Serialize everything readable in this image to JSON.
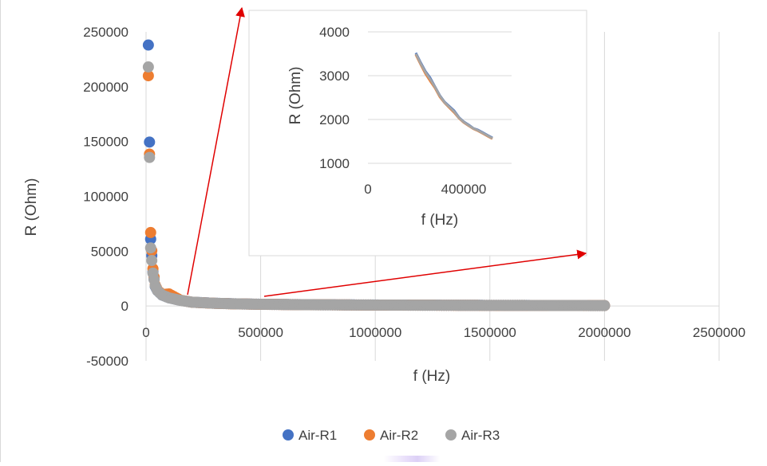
{
  "chart_data": [
    {
      "type": "scatter",
      "role": "main",
      "xlabel": "f (Hz)",
      "ylabel": "R (Ohm)",
      "xlim": [
        0,
        2500000
      ],
      "ylim": [
        -50000,
        250000
      ],
      "x_ticks": [
        "0",
        "500000",
        "1000000",
        "1500000",
        "2000000",
        "2500000"
      ],
      "y_ticks": [
        "250000",
        "200000",
        "150000",
        "100000",
        "50000",
        "0",
        "-50000"
      ],
      "grid": "vertical",
      "legend_position": "bottom",
      "series": [
        {
          "name": "Air-R1",
          "color": "#4472c4",
          "points": [
            [
              10000,
              238000
            ],
            [
              20000,
              61000
            ],
            [
              30000,
              31000
            ],
            [
              40000,
              18000
            ],
            [
              50000,
              14000
            ],
            [
              70000,
              10000
            ],
            [
              100000,
              7500
            ],
            [
              150000,
              5200
            ],
            [
              200000,
              3500
            ],
            [
              300000,
              2500
            ],
            [
              400000,
              1950
            ],
            [
              500000,
              1600
            ],
            [
              700000,
              1200
            ],
            [
              1000000,
              900
            ],
            [
              1300000,
              700
            ],
            [
              1600000,
              560
            ],
            [
              1800000,
              480
            ],
            [
              2000000,
              420
            ]
          ]
        },
        {
          "name": "Air-R2",
          "color": "#ed7d31",
          "points": [
            [
              10000,
              210000
            ],
            [
              20000,
              67000
            ],
            [
              30000,
              34000
            ],
            [
              40000,
              19000
            ],
            [
              50000,
              14500
            ],
            [
              70000,
              10500
            ],
            [
              100000,
              11000
            ],
            [
              150000,
              5300
            ],
            [
              200000,
              3450
            ],
            [
              300000,
              2450
            ],
            [
              400000,
              1900
            ],
            [
              500000,
              1580
            ],
            [
              700000,
              1180
            ],
            [
              1000000,
              880
            ],
            [
              1300000,
              690
            ],
            [
              1600000,
              550
            ],
            [
              1800000,
              470
            ],
            [
              2000000,
              410
            ]
          ]
        },
        {
          "name": "Air-R3",
          "color": "#a5a5a5",
          "points": [
            [
              10000,
              218000
            ],
            [
              20000,
              53000
            ],
            [
              30000,
              30000
            ],
            [
              40000,
              18500
            ],
            [
              50000,
              14000
            ],
            [
              70000,
              10000
            ],
            [
              100000,
              7400
            ],
            [
              150000,
              5100
            ],
            [
              200000,
              3480
            ],
            [
              300000,
              2480
            ],
            [
              400000,
              1930
            ],
            [
              500000,
              1590
            ],
            [
              700000,
              1190
            ],
            [
              1000000,
              890
            ],
            [
              1300000,
              700
            ],
            [
              1600000,
              555
            ],
            [
              1800000,
              475
            ],
            [
              2000000,
              415
            ]
          ]
        }
      ]
    },
    {
      "type": "line",
      "role": "inset",
      "xlabel": "f (Hz)",
      "ylabel": "R (Ohm)",
      "xlim": [
        0,
        600000
      ],
      "ylim": [
        1000,
        4000
      ],
      "x_ticks": [
        "0",
        "400000"
      ],
      "y_ticks": [
        "4000",
        "3000",
        "2000",
        "1000"
      ],
      "series": [
        {
          "name": "Air-R1",
          "color": "#4472c4",
          "points": [
            [
              200000,
              3520
            ],
            [
              220000,
              3300
            ],
            [
              240000,
              3100
            ],
            [
              260000,
              2950
            ],
            [
              280000,
              2750
            ],
            [
              300000,
              2550
            ],
            [
              320000,
              2400
            ],
            [
              340000,
              2300
            ],
            [
              360000,
              2200
            ],
            [
              380000,
              2050
            ],
            [
              400000,
              1950
            ],
            [
              420000,
              1880
            ],
            [
              440000,
              1800
            ],
            [
              460000,
              1760
            ],
            [
              480000,
              1700
            ],
            [
              500000,
              1640
            ],
            [
              520000,
              1580
            ]
          ]
        },
        {
          "name": "Air-R2",
          "color": "#ed7d31",
          "points": [
            [
              200000,
              3480
            ],
            [
              220000,
              3260
            ],
            [
              240000,
              3050
            ],
            [
              260000,
              2880
            ],
            [
              280000,
              2720
            ],
            [
              300000,
              2520
            ],
            [
              320000,
              2380
            ],
            [
              340000,
              2270
            ],
            [
              360000,
              2160
            ],
            [
              380000,
              2030
            ],
            [
              400000,
              1930
            ],
            [
              420000,
              1860
            ],
            [
              440000,
              1790
            ],
            [
              460000,
              1740
            ],
            [
              480000,
              1680
            ],
            [
              500000,
              1620
            ],
            [
              520000,
              1560
            ]
          ]
        },
        {
          "name": "Air-R3",
          "color": "#a5a5a5",
          "points": [
            [
              200000,
              3500
            ],
            [
              220000,
              3280
            ],
            [
              240000,
              3080
            ],
            [
              260000,
              2920
            ],
            [
              280000,
              2740
            ],
            [
              300000,
              2540
            ],
            [
              320000,
              2390
            ],
            [
              340000,
              2285
            ],
            [
              360000,
              2180
            ],
            [
              380000,
              2040
            ],
            [
              400000,
              1940
            ],
            [
              420000,
              1870
            ],
            [
              440000,
              1795
            ],
            [
              460000,
              1750
            ],
            [
              480000,
              1690
            ],
            [
              500000,
              1630
            ],
            [
              520000,
              1570
            ]
          ]
        }
      ]
    }
  ]
}
